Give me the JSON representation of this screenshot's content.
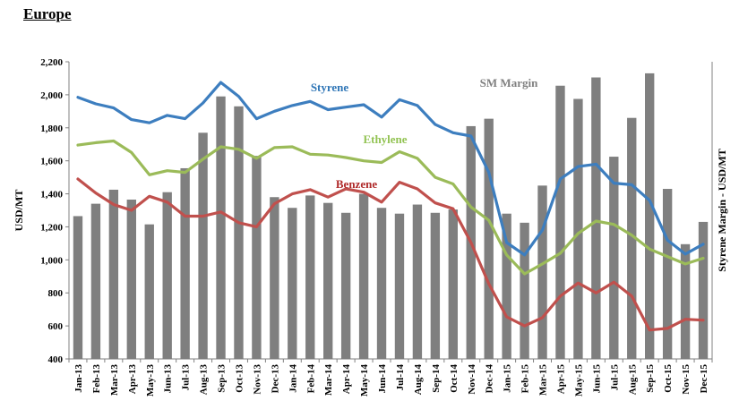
{
  "header": {
    "title": "Europe"
  },
  "chart_data": {
    "type": "bar+line",
    "title": "Europe",
    "categories": [
      "Jan-13",
      "Feb-13",
      "Mar-13",
      "Apr-13",
      "May-13",
      "Jun-13",
      "Jul-13",
      "Aug-13",
      "Sep-13",
      "Oct-13",
      "Nov-13",
      "Dec-13",
      "Jan-14",
      "Feb-14",
      "Mar-14",
      "Apr-14",
      "May-14",
      "Jun-14",
      "Jul-14",
      "Aug-14",
      "Sep-14",
      "Oct-14",
      "Nov-14",
      "Dec-14",
      "Jan-15",
      "Feb-15",
      "Mar-15",
      "Apr-15",
      "May-15",
      "Jun-15",
      "Jul-15",
      "Aug-15",
      "Sep-15",
      "Oct-15",
      "Nov-15",
      "Dec-15"
    ],
    "ylabel": "USD/MT",
    "y2label": "Styrene Margin - USD/MT",
    "ylim": [
      400,
      2200
    ],
    "yticks": [
      "400",
      "600",
      "800",
      "1,000",
      "1,200",
      "1,400",
      "1,600",
      "1,800",
      "2,000",
      "2,200"
    ],
    "ytick_values": [
      400,
      600,
      800,
      1000,
      1200,
      1400,
      1600,
      1800,
      2000,
      2200
    ],
    "series": [
      {
        "name": "SM Margin",
        "kind": "bar",
        "color": "#7f7f7f",
        "label_color": "#808080",
        "values": [
          1265,
          1340,
          1425,
          1365,
          1215,
          1410,
          1555,
          1770,
          1990,
          1930,
          1630,
          1380,
          1315,
          1390,
          1345,
          1285,
          1400,
          1315,
          1280,
          1335,
          1285,
          1305,
          1810,
          1855,
          1280,
          1225,
          1450,
          2055,
          1975,
          2105,
          1625,
          1860,
          2130,
          1430,
          1095,
          1230
        ]
      },
      {
        "name": "Styrene",
        "kind": "line",
        "color": "#3d7ebf",
        "label_color": "#2e75b6",
        "values": [
          1985,
          1945,
          1920,
          1850,
          1830,
          1875,
          1855,
          1950,
          2075,
          1990,
          1855,
          1900,
          1935,
          1960,
          1910,
          1925,
          1940,
          1865,
          1970,
          1935,
          1820,
          1770,
          1750,
          1530,
          1105,
          1030,
          1180,
          1490,
          1565,
          1580,
          1465,
          1455,
          1360,
          1120,
          1035,
          1095
        ]
      },
      {
        "name": "Ethylene",
        "kind": "line",
        "color": "#9bbb59",
        "label_color": "#92c353",
        "values": [
          1695,
          1710,
          1720,
          1650,
          1515,
          1540,
          1530,
          1610,
          1685,
          1670,
          1615,
          1680,
          1685,
          1640,
          1635,
          1620,
          1600,
          1590,
          1655,
          1615,
          1500,
          1460,
          1320,
          1240,
          1030,
          915,
          975,
          1040,
          1160,
          1235,
          1215,
          1150,
          1065,
          1020,
          975,
          1010
        ]
      },
      {
        "name": "Benzene",
        "kind": "line",
        "color": "#c0504d",
        "label_color": "#b02a2a",
        "values": [
          1490,
          1405,
          1335,
          1300,
          1385,
          1350,
          1265,
          1265,
          1290,
          1225,
          1200,
          1340,
          1400,
          1425,
          1380,
          1430,
          1410,
          1350,
          1470,
          1430,
          1345,
          1310,
          1105,
          855,
          655,
          600,
          650,
          780,
          860,
          800,
          865,
          780,
          575,
          585,
          640,
          635
        ]
      }
    ]
  }
}
